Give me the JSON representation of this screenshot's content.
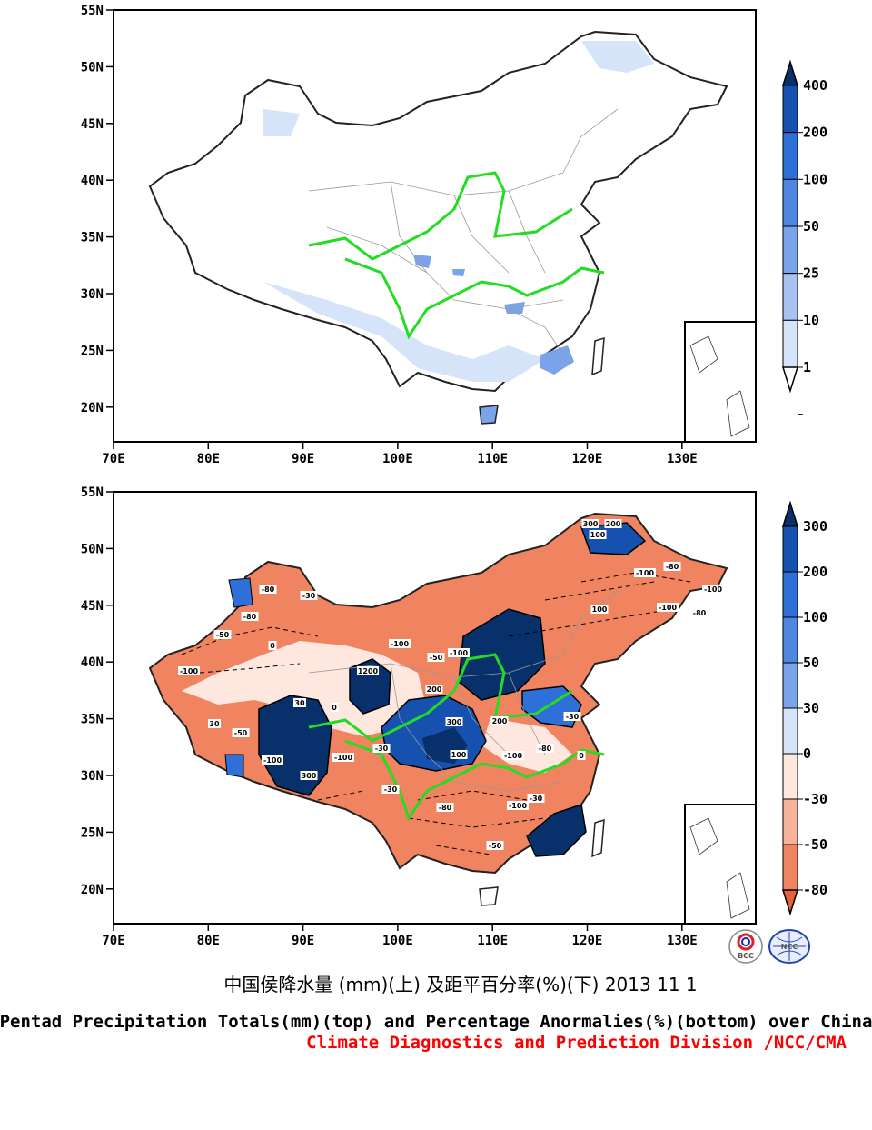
{
  "top_map": {
    "lon_ticks": [
      "70E",
      "80E",
      "90E",
      "100E",
      "110E",
      "120E",
      "130E"
    ],
    "lat_ticks": [
      "55N",
      "50N",
      "45N",
      "40N",
      "35N",
      "30N",
      "25N",
      "20N"
    ],
    "colorbar_labels": [
      "400",
      "200",
      "100",
      "50",
      "25",
      "10",
      "1"
    ],
    "colorbar_colors": [
      "#08306b",
      "#1651b0",
      "#2f6fd8",
      "#4f87e0",
      "#7aa3ea",
      "#a8c3f2",
      "#d6e4fa",
      "#ffffff"
    ]
  },
  "bottom_map": {
    "lon_ticks": [
      "70E",
      "80E",
      "90E",
      "100E",
      "110E",
      "120E",
      "130E"
    ],
    "lat_ticks": [
      "55N",
      "50N",
      "45N",
      "40N",
      "35N",
      "30N",
      "25N",
      "20N"
    ],
    "colorbar_labels": [
      "300",
      "200",
      "100",
      "50",
      "30",
      "0",
      "-30",
      "-50",
      "-80"
    ],
    "colorbar_colors": [
      "#08306b",
      "#1651b0",
      "#2f6fd8",
      "#4f87e0",
      "#7aa3ea",
      "#d6e4fa",
      "#fde7df",
      "#f7b39c",
      "#f08460",
      "#e8603a"
    ],
    "contour_labels": [
      "-100",
      "-80",
      "-50",
      "-30",
      "0",
      "30",
      "100",
      "200",
      "300",
      "1200",
      "-100",
      "-80",
      "-100",
      "-50",
      "-30",
      "0",
      "100",
      "200",
      "300",
      "-100",
      "-80",
      "-100",
      "-100",
      "-80",
      "-100",
      "-100",
      "-50",
      "-30",
      "100",
      "200",
      "-100",
      "-80",
      "300",
      "-30",
      "30",
      "-50",
      "0",
      "-100",
      "-80",
      "-30"
    ]
  },
  "title_cn": "中国侯降水量 (mm)(上) 及距平百分率(%)(下) 2013 11 1",
  "title_en": "Pentad Precipitation Totals(mm)(top) and Percentage Anormalies(%)(bottom) over China",
  "credit": "Climate Diagnostics and Prediction Division /NCC/CMA",
  "logo_bcc": "BCC",
  "logo_ncc": "NCC"
}
